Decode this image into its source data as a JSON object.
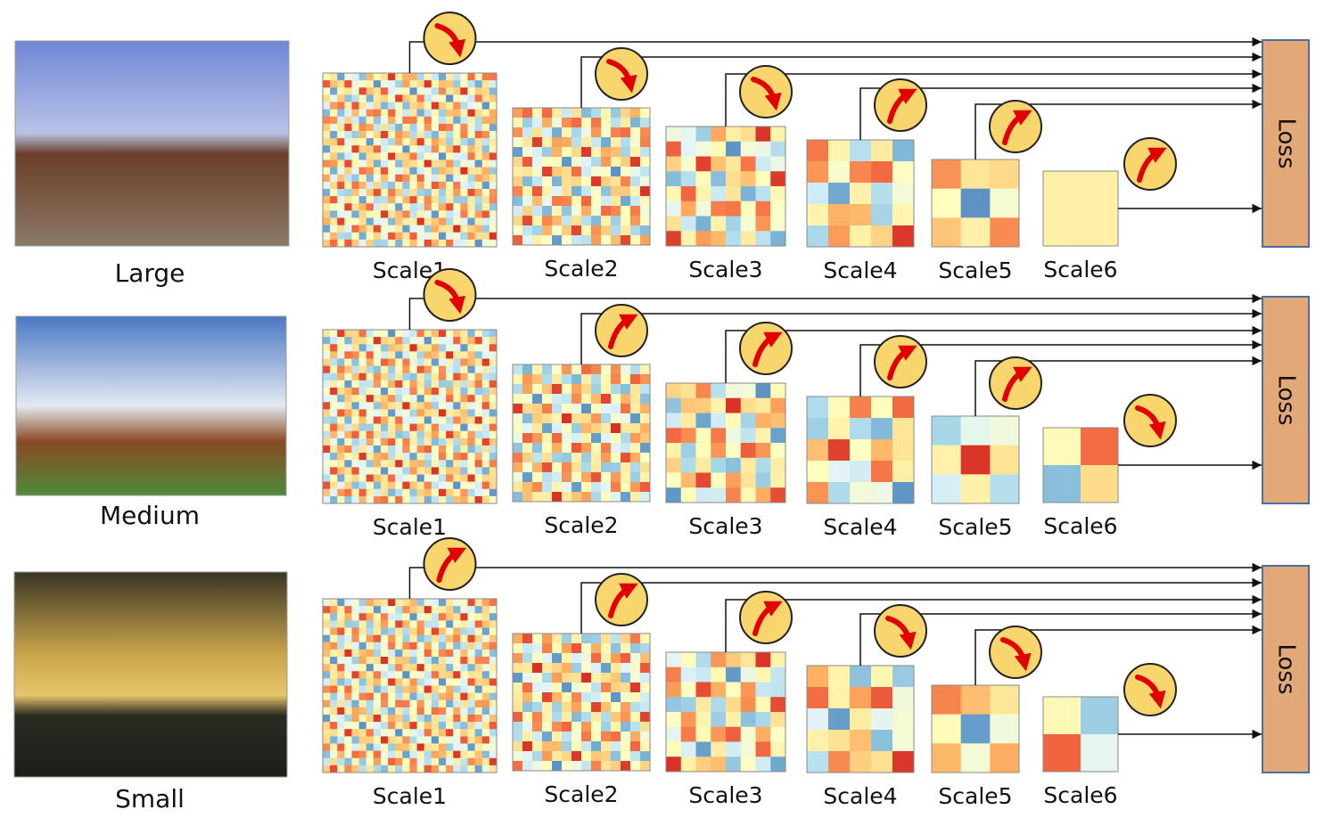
{
  "rows": [
    {
      "label": "Large",
      "loss": "Loss",
      "scales": [
        {
          "label": "Scale1",
          "arrow": "down"
        },
        {
          "label": "Scale2",
          "arrow": "down"
        },
        {
          "label": "Scale3",
          "arrow": "down"
        },
        {
          "label": "Scale4",
          "arrow": "up"
        },
        {
          "label": "Scale5",
          "arrow": "up"
        },
        {
          "label": "Scale6",
          "arrow": "up"
        }
      ]
    },
    {
      "label": "Medium",
      "loss": "Loss",
      "scales": [
        {
          "label": "Scale1",
          "arrow": "down"
        },
        {
          "label": "Scale2",
          "arrow": "up"
        },
        {
          "label": "Scale3",
          "arrow": "up"
        },
        {
          "label": "Scale4",
          "arrow": "up"
        },
        {
          "label": "Scale5",
          "arrow": "up"
        },
        {
          "label": "Scale6",
          "arrow": "down"
        }
      ]
    },
    {
      "label": "Small",
      "loss": "Loss",
      "scales": [
        {
          "label": "Scale1",
          "arrow": "up"
        },
        {
          "label": "Scale2",
          "arrow": "up"
        },
        {
          "label": "Scale3",
          "arrow": "up"
        },
        {
          "label": "Scale4",
          "arrow": "down"
        },
        {
          "label": "Scale5",
          "arrow": "down"
        },
        {
          "label": "Scale6",
          "arrow": "down"
        }
      ]
    }
  ]
}
